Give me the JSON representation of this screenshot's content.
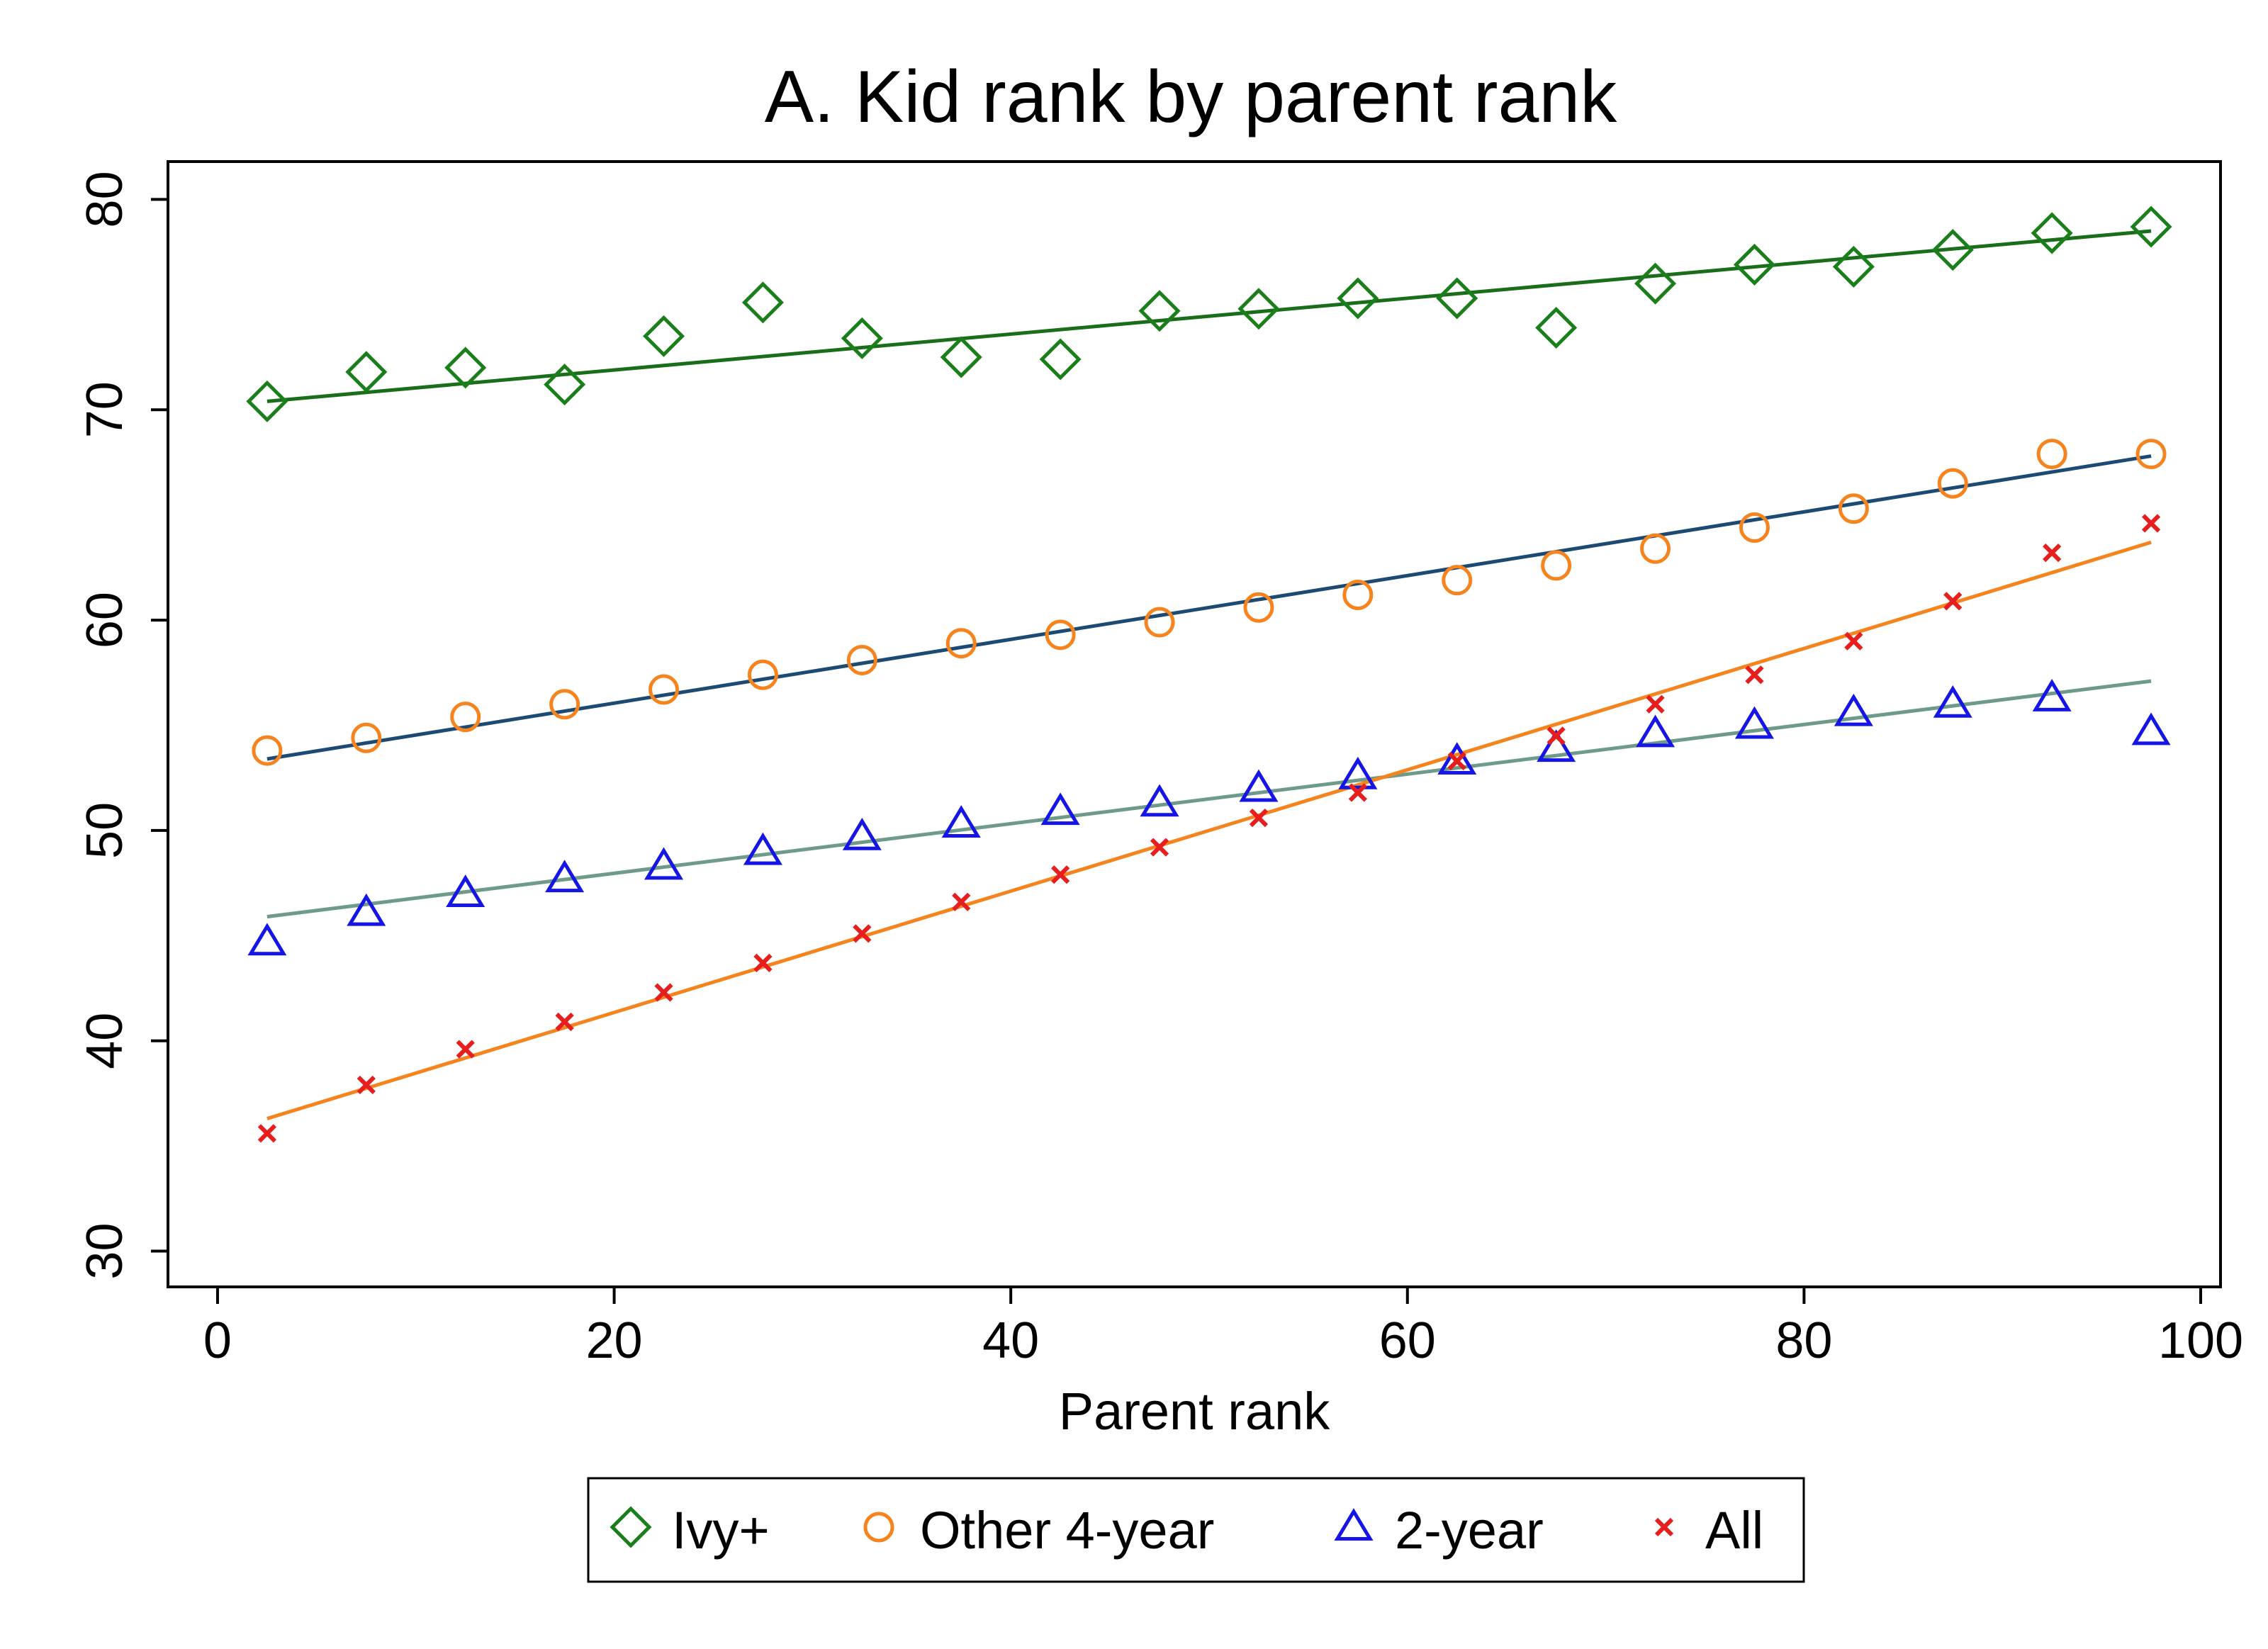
{
  "chart_data": {
    "type": "scatter",
    "title": "A. Kid rank by parent rank",
    "xlabel": "Parent rank",
    "ylabel": "",
    "xlim": [
      -2.5,
      101
    ],
    "ylim": [
      28.3,
      81.8
    ],
    "x_ticks": [
      0,
      20,
      40,
      60,
      80,
      100
    ],
    "y_ticks": [
      30,
      40,
      50,
      60,
      70,
      80
    ],
    "grid": false,
    "legend_position": "bottom",
    "x": [
      2.5,
      7.5,
      12.5,
      17.5,
      22.5,
      27.5,
      32.5,
      37.5,
      42.5,
      47.5,
      52.5,
      57.5,
      62.5,
      67.5,
      72.5,
      77.5,
      82.5,
      87.5,
      92.5,
      97.5
    ],
    "series": [
      {
        "name": "Ivy+",
        "marker": "diamond",
        "color": "#1a7f1a",
        "fit_color": "#1a6e1a",
        "values": [
          70.4,
          71.8,
          72.0,
          71.2,
          73.5,
          75.1,
          73.4,
          72.5,
          72.4,
          74.7,
          74.8,
          75.3,
          75.3,
          73.9,
          76.0,
          76.9,
          76.8,
          77.6,
          78.4,
          78.7
        ],
        "fit": [
          70.4,
          78.5
        ]
      },
      {
        "name": "Other 4-year",
        "marker": "circle",
        "color": "#f5841f",
        "fit_color": "#1c4a72",
        "values": [
          53.8,
          54.4,
          55.4,
          56.0,
          56.7,
          57.4,
          58.1,
          58.9,
          59.3,
          59.9,
          60.6,
          61.2,
          61.9,
          62.6,
          63.4,
          64.4,
          65.3,
          66.5,
          67.9,
          67.9
        ],
        "fit": [
          53.4,
          67.8
        ]
      },
      {
        "name": "2-year",
        "marker": "triangle",
        "color": "#1515e6",
        "fit_color": "#6e9a8a",
        "values": [
          44.7,
          46.1,
          47.0,
          47.7,
          48.3,
          49.0,
          49.7,
          50.3,
          50.9,
          51.3,
          52.0,
          52.6,
          53.3,
          53.9,
          54.6,
          55.0,
          55.6,
          56.0,
          56.3,
          54.7
        ],
        "fit": [
          45.9,
          57.1
        ]
      },
      {
        "name": "All",
        "marker": "x",
        "color": "#e61e1e",
        "fit_color": "#f5841f",
        "values": [
          35.6,
          37.9,
          39.6,
          40.9,
          42.3,
          43.7,
          45.1,
          46.6,
          47.9,
          49.2,
          50.6,
          51.8,
          53.3,
          54.5,
          56.0,
          57.4,
          59.0,
          60.9,
          63.2,
          64.6
        ],
        "fit": [
          36.3,
          63.7
        ]
      }
    ]
  }
}
